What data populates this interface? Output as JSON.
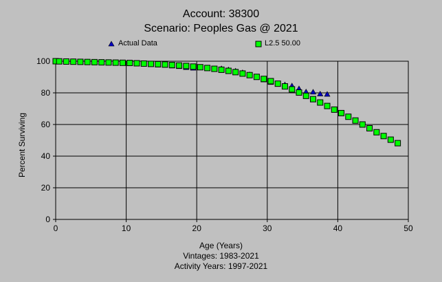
{
  "chart_data": {
    "type": "scatter",
    "title": "Account: 38300",
    "subtitle": "Scenario: Peoples Gas @ 2021",
    "xlabel": "Age (Years)",
    "ylabel": "Percent Surviving",
    "footer": [
      "Vintages: 1983-2021",
      "Activity Years: 1997-2021"
    ],
    "xlim": [
      0,
      50
    ],
    "ylim": [
      0,
      100
    ],
    "xticks": [
      "0",
      "10",
      "20",
      "30",
      "40",
      "50"
    ],
    "yticks": [
      "0",
      "20",
      "40",
      "60",
      "80",
      "100"
    ],
    "grid": true,
    "legend": "top",
    "series": [
      {
        "name": "Actual Data",
        "marker": "triangle",
        "color": "#0000c0",
        "x": [
          0,
          0.5,
          1.5,
          2.5,
          3.5,
          4.5,
          5.5,
          6.5,
          7.5,
          8.5,
          9.5,
          10.5,
          11.5,
          12.5,
          13.5,
          14.5,
          15.5,
          16.5,
          17.5,
          18.5,
          19.5,
          20.5,
          21.5,
          22.5,
          23.5,
          24.5,
          25.5,
          26.5,
          27.5,
          28.5,
          29.5,
          30.5,
          31.5,
          32.5,
          33.5,
          34.5,
          35.5,
          36.5,
          37.5,
          38.5
        ],
        "y": [
          100,
          99.9,
          99.8,
          99.7,
          99.6,
          99.5,
          99.4,
          99.3,
          99.2,
          99.1,
          98.8,
          98.8,
          98.5,
          98.2,
          98.0,
          97.6,
          97.4,
          97.0,
          96.6,
          96.0,
          95.6,
          95.9,
          95.6,
          95.1,
          95.3,
          94.6,
          93.8,
          92.8,
          91.5,
          90.0,
          88.2,
          86.6,
          85.7,
          85.1,
          84.4,
          82.6,
          80.6,
          80.5,
          79.3,
          79.1
        ]
      },
      {
        "name": "L2.5 50.00",
        "marker": "square",
        "color": "#00ff00",
        "x": [
          0,
          0.5,
          1.5,
          2.5,
          3.5,
          4.5,
          5.5,
          6.5,
          7.5,
          8.5,
          9.5,
          10.5,
          11.5,
          12.5,
          13.5,
          14.5,
          15.5,
          16.5,
          17.5,
          18.5,
          19.5,
          20.5,
          21.5,
          22.5,
          23.5,
          24.5,
          25.5,
          26.5,
          27.5,
          28.5,
          29.5,
          30.5,
          31.5,
          32.5,
          33.5,
          34.5,
          35.5,
          36.5,
          37.5,
          38.5,
          39.5,
          40.5,
          41.5,
          42.5,
          43.5,
          44.5,
          45.5,
          46.5,
          47.5,
          48.5
        ],
        "y": [
          100,
          99.9,
          99.8,
          99.7,
          99.6,
          99.5,
          99.4,
          99.3,
          99.2,
          99.1,
          99.0,
          98.9,
          98.7,
          98.5,
          98.3,
          98.1,
          97.9,
          97.6,
          97.3,
          97.0,
          96.6,
          96.2,
          95.7,
          95.2,
          94.6,
          93.9,
          93.1,
          92.2,
          91.2,
          90.1,
          88.8,
          87.4,
          85.8,
          84.1,
          82.2,
          80.2,
          78.1,
          76.0,
          73.9,
          71.7,
          69.4,
          67.2,
          64.9,
          62.5,
          60.0,
          57.6,
          55.1,
          52.7,
          50.4,
          48.2
        ]
      }
    ]
  }
}
